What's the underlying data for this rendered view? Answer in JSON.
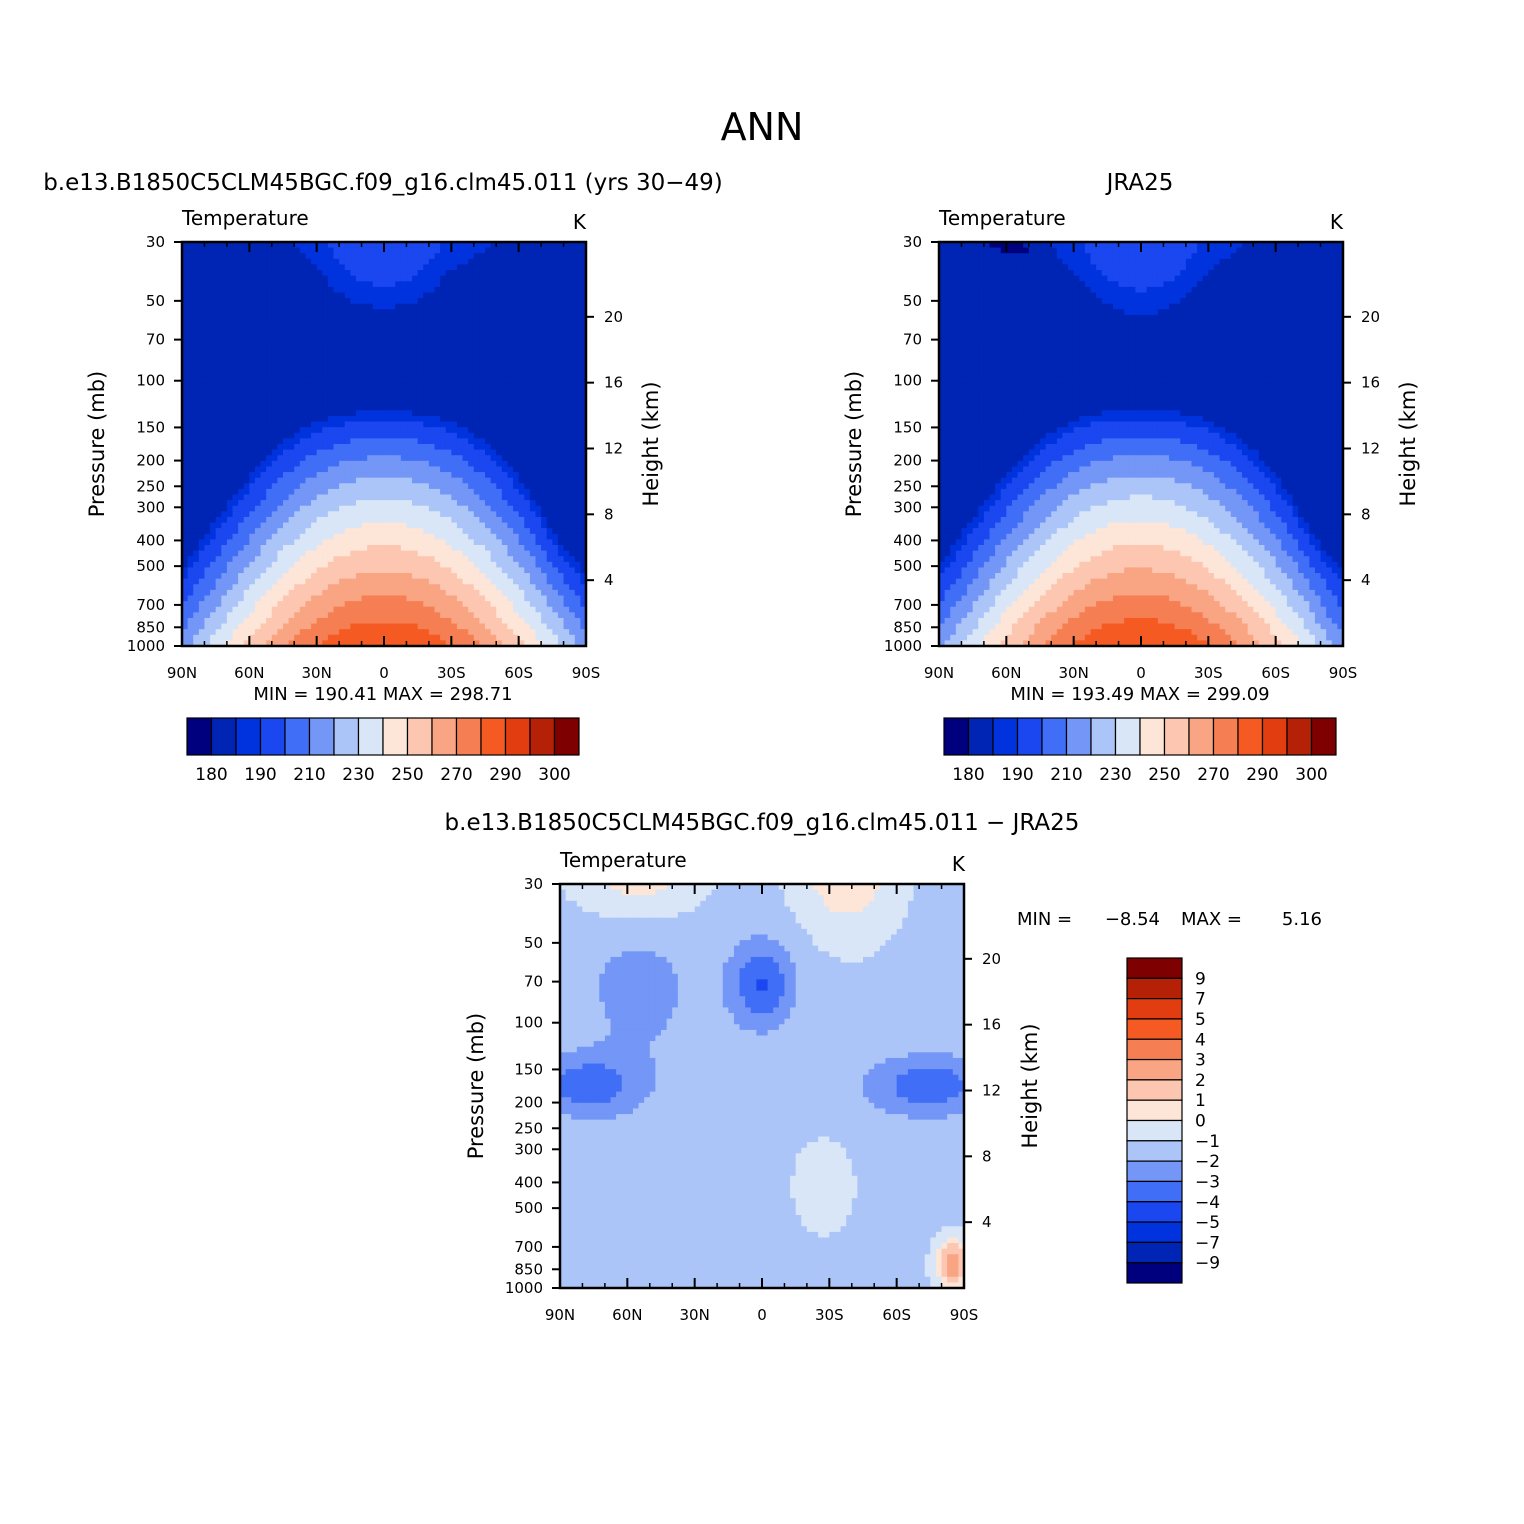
{
  "figure": {
    "title": "ANN"
  },
  "colors": {
    "temperature_fill": [
      "#00007f",
      "#0024b3",
      "#0033dd",
      "#1a47f0",
      "#416ef7",
      "#7396f7",
      "#acc5f8",
      "#d8e6f8",
      "#fde5d8",
      "#fcc6b0",
      "#f9a482",
      "#f57e52",
      "#f55a23",
      "#e13d11",
      "#b52106",
      "#7f0000"
    ],
    "difference_fill": [
      "#00007f",
      "#0024b3",
      "#0033dd",
      "#1a47f0",
      "#416ef7",
      "#7396f7",
      "#acc5f8",
      "#d8e6f8",
      "#fde5d8",
      "#fcc6b0",
      "#f9a482",
      "#f57e52",
      "#f55a23",
      "#e13d11",
      "#b52106",
      "#7f0000"
    ]
  },
  "chart_data": [
    {
      "type": "heatmap",
      "panel_title": "b.e13.B1850C5CLM45BGC.f09_g16.clm45.011 (yrs 30−49)",
      "left_label": "Temperature",
      "right_label": "K",
      "ylabel": "Pressure (mb)",
      "ylabel_right": "Height (km)",
      "x_ticks": [
        "90N",
        "60N",
        "30N",
        "0",
        "30S",
        "60S",
        "90S"
      ],
      "y_ticks": [
        "30",
        "50",
        "70",
        "100",
        "150",
        "200",
        "250",
        "300",
        "400",
        "500",
        "700",
        "850",
        "1000"
      ],
      "y_ticks_right": [
        "20",
        "16",
        "12",
        "8",
        "4"
      ],
      "ylim": [
        1000,
        30
      ],
      "xlim": [
        90,
        -90
      ],
      "min_text": "MIN =  190.41   MAX =  298.71",
      "min": 190.41,
      "max": 298.71,
      "colorbar_labels": [
        "180",
        "190",
        "210",
        "230",
        "250",
        "270",
        "290",
        "300"
      ],
      "levels": [
        180,
        185,
        190,
        200,
        210,
        220,
        230,
        240,
        250,
        260,
        270,
        280,
        290,
        295,
        300
      ],
      "field": "model"
    },
    {
      "type": "heatmap",
      "panel_title": "JRA25",
      "left_label": "Temperature",
      "right_label": "K",
      "ylabel": "Pressure (mb)",
      "ylabel_right": "Height (km)",
      "x_ticks": [
        "90N",
        "60N",
        "30N",
        "0",
        "30S",
        "60S",
        "90S"
      ],
      "y_ticks": [
        "30",
        "50",
        "70",
        "100",
        "150",
        "200",
        "250",
        "300",
        "400",
        "500",
        "700",
        "850",
        "1000"
      ],
      "y_ticks_right": [
        "20",
        "16",
        "12",
        "8",
        "4"
      ],
      "ylim": [
        1000,
        30
      ],
      "xlim": [
        90,
        -90
      ],
      "min_text": "MIN =  193.49   MAX =  299.09",
      "min": 193.49,
      "max": 299.09,
      "colorbar_labels": [
        "180",
        "190",
        "210",
        "230",
        "250",
        "270",
        "290",
        "300"
      ],
      "levels": [
        180,
        185,
        190,
        200,
        210,
        220,
        230,
        240,
        250,
        260,
        270,
        280,
        290,
        295,
        300
      ],
      "field": "obs"
    },
    {
      "type": "heatmap",
      "panel_title": "b.e13.B1850C5CLM45BGC.f09_g16.clm45.011 − JRA25",
      "left_label": "Temperature",
      "right_label": "K",
      "ylabel": "Pressure (mb)",
      "ylabel_right": "Height (km)",
      "x_ticks": [
        "90N",
        "60N",
        "30N",
        "0",
        "30S",
        "60S",
        "90S"
      ],
      "y_ticks": [
        "30",
        "50",
        "70",
        "100",
        "150",
        "200",
        "250",
        "300",
        "400",
        "500",
        "700",
        "850",
        "1000"
      ],
      "y_ticks_right": [
        "20",
        "16",
        "12",
        "8",
        "4"
      ],
      "ylim": [
        1000,
        30
      ],
      "xlim": [
        90,
        -90
      ],
      "min_label": "MIN =",
      "min_value": "−8.54",
      "max_label": "MAX =",
      "max_value": "5.16",
      "min": -8.54,
      "max": 5.16,
      "colorbar_labels": [
        "9",
        "7",
        "5",
        "4",
        "3",
        "2",
        "1",
        "0",
        "−1",
        "−2",
        "−3",
        "−4",
        "−5",
        "−7",
        "−9"
      ],
      "levels": [
        -9,
        -7,
        -5,
        -4,
        -3,
        -2,
        -1,
        0,
        1,
        2,
        3,
        4,
        5,
        7,
        9
      ],
      "field": "diff"
    }
  ]
}
